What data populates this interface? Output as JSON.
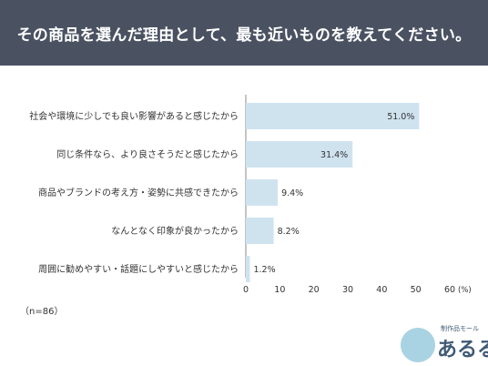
{
  "header": {
    "title": "その商品を選んだ理由として、最も近いものを教えてください。"
  },
  "chart_data": {
    "type": "bar",
    "orientation": "horizontal",
    "categories": [
      "社会や環境に少しでも良い影響があると感じたから",
      "同じ条件なら、より良さそうだと感じたから",
      "商品やブランドの考え方・姿勢に共感できたから",
      "なんとなく印象が良かったから",
      "周囲に勧めやすい・話題にしやすいと感じたから"
    ],
    "values": [
      51.0,
      31.4,
      9.4,
      8.2,
      1.2
    ],
    "value_labels": [
      "51.0%",
      "31.4%",
      "9.4%",
      "8.2%",
      "1.2%"
    ],
    "x_ticks": [
      "0",
      "10",
      "20",
      "30",
      "40",
      "50",
      "60"
    ],
    "x_unit": "(%)",
    "xlim": [
      0,
      60
    ],
    "bar_color": "#cfe3ef",
    "grid": false
  },
  "sample_note": "（n=86）",
  "logo": {
    "name": "あるる",
    "tagline": "制作品モール"
  }
}
